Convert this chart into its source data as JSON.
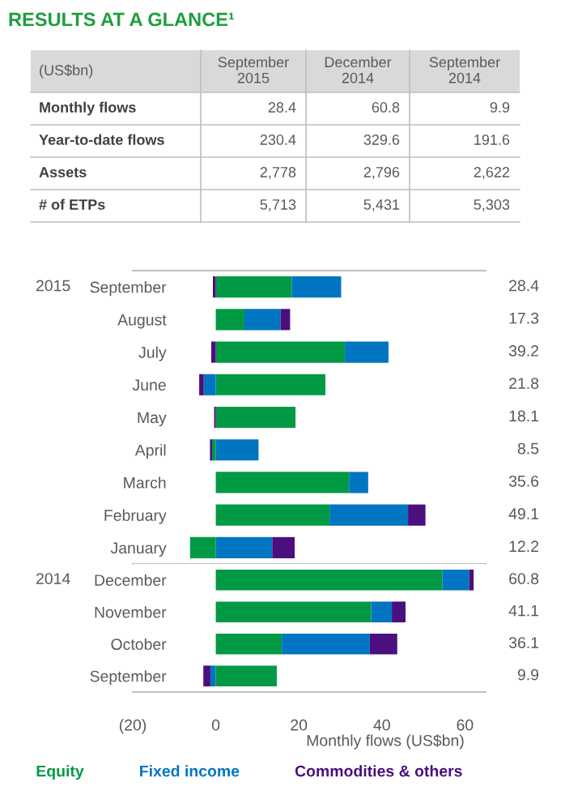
{
  "chart_data": [
    {
      "type": "other",
      "title": "RESULTS AT A GLANCE¹",
      "categories": [
        "(US$bn)",
        "September\n2015",
        "December\n2014",
        "September\n2014"
      ],
      "y_categories": [
        "Monthly flows",
        "Year-to-date flows",
        "Assets",
        "# of ETPs"
      ],
      "cell_labels": [
        [
          "28.4",
          "60.8",
          "9.9"
        ],
        [
          "230.4",
          "329.6",
          "191.6"
        ],
        [
          "2,778",
          "2,796",
          "2,622"
        ],
        [
          "5,713",
          "5,431",
          "5,303"
        ]
      ]
    },
    {
      "type": "bar",
      "orientation": "horizontal",
      "stacked": true,
      "tick_labels": "y",
      "categories": [
        "September",
        "August",
        "July",
        "June",
        "May",
        "April",
        "March",
        "February",
        "January"
      ],
      "series": [
        {
          "color": "#009a44",
          "values": [
            18.3,
            6.9,
            31.1,
            26.4,
            19.2,
            -0.9,
            32.1,
            27.4,
            -6.2
          ]
        },
        {
          "color": "#0075c2",
          "values": [
            11.9,
            8.7,
            10.5,
            -2.9,
            null,
            10.3,
            4.6,
            18.9,
            13.6
          ]
        },
        {
          "color": "#4b0f7e",
          "values": [
            -0.7,
            2.3,
            -1.1,
            -1.1,
            -0.4,
            -0.5,
            null,
            4.2,
            5.4
          ]
        }
      ],
      "annotations": [
        "2015",
        "28.4",
        "17.3",
        "39.2",
        "21.8",
        "18.1",
        "8.5",
        "35.6",
        "49.1",
        "12.2"
      ],
      "xlim": [
        -20,
        65
      ]
    },
    {
      "type": "bar",
      "orientation": "horizontal",
      "stacked": true,
      "xlabel": "Monthly flows (US$bn)",
      "legend": "bottom",
      "categories": [
        "December",
        "November",
        "October",
        "September"
      ],
      "series": [
        {
          "name": "Equity",
          "color": "#009a44",
          "values": [
            54.6,
            37.4,
            15.9,
            14.7
          ]
        },
        {
          "name": "Fixed income",
          "color": "#0075c2",
          "values": [
            6.4,
            5.0,
            21.2,
            -1.3
          ]
        },
        {
          "name": "Commodities & others",
          "color": "#4b0f7e",
          "values": [
            1.1,
            3.3,
            6.6,
            -1.7
          ]
        }
      ],
      "annotations": [
        "2014",
        "60.8",
        "41.1",
        "36.1",
        "9.9"
      ],
      "xlim": [
        -20,
        65
      ],
      "xticks": [
        {
          "value": -20,
          "label": "(20)"
        },
        0,
        20,
        40,
        60
      ]
    }
  ]
}
